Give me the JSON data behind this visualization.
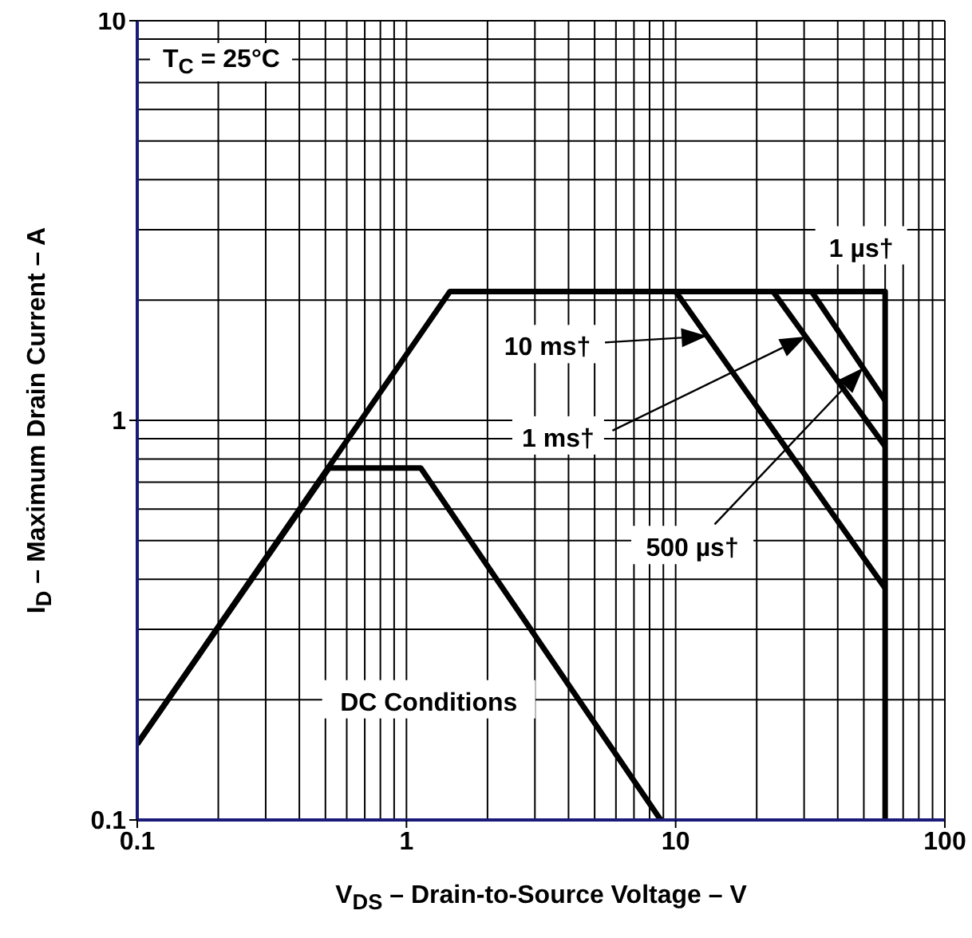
{
  "chart_data": {
    "type": "line",
    "xlabel": "V$_{DS}$ – Drain-to-Source Voltage – V",
    "ylabel": "I$_{D}$ – Maximum Drain Current – A",
    "log": "xy",
    "grid": true,
    "xlim": [
      0.1,
      100
    ],
    "xticks": [
      0.1,
      1,
      10,
      100
    ],
    "ylim": [
      0.1,
      10
    ],
    "yticks": [
      0.1,
      1,
      10
    ],
    "series": [
      {
        "name": "1 µs†",
        "color": "#000000",
        "x": [
          0.1,
          1.45,
          60,
          60
        ],
        "values": [
          0.155,
          2.1,
          2.1,
          0.1
        ]
      },
      {
        "name": "DC Conditions",
        "color": "#000000",
        "x": [
          0.1,
          0.516,
          1.13,
          8.8
        ],
        "values": [
          0.155,
          0.76,
          0.76,
          0.1
        ]
      },
      {
        "name": "10 ms†",
        "color": "#000000",
        "x": [
          10,
          60
        ],
        "values": [
          2.1,
          0.38
        ]
      },
      {
        "name": "1 ms†",
        "color": "#000000",
        "x": [
          23,
          60
        ],
        "values": [
          2.1,
          0.86
        ]
      },
      {
        "name": "500 µs†",
        "color": "#000000",
        "x": [
          32,
          60
        ],
        "values": [
          2.1,
          1.12
        ]
      }
    ],
    "annotations": [
      "T$_{C}$ = 25°C"
    ]
  }
}
